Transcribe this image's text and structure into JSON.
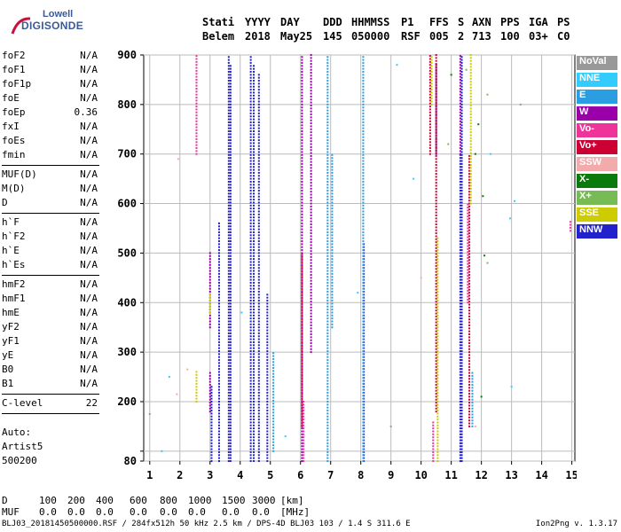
{
  "logo": {
    "top": "Lowell",
    "bottom": "DIGISONDE"
  },
  "header": {
    "columns": [
      {
        "label": "Stati",
        "value": "Belem"
      },
      {
        "label": "YYYY",
        "value": "2018"
      },
      {
        "label": "DAY",
        "value": "May25"
      },
      {
        "label": "DDD",
        "value": "145"
      },
      {
        "label": "HHMMSS",
        "value": "050000"
      },
      {
        "label": "P1",
        "value": "RSF"
      },
      {
        "label": "FFS",
        "value": "005"
      },
      {
        "label": "S",
        "value": "2"
      },
      {
        "label": "AXN",
        "value": "713"
      },
      {
        "label": "PPS",
        "value": "100"
      },
      {
        "label": "IGA",
        "value": "03+"
      },
      {
        "label": "PS",
        "value": "C0"
      }
    ]
  },
  "parameters": [
    {
      "group": [
        {
          "name": "foF2",
          "value": "N/A"
        },
        {
          "name": "foF1",
          "value": "N/A"
        },
        {
          "name": "foF1p",
          "value": "N/A"
        },
        {
          "name": "foE",
          "value": "N/A"
        },
        {
          "name": "foEp",
          "value": "0.36"
        },
        {
          "name": "fxI",
          "value": "N/A"
        },
        {
          "name": "foEs",
          "value": "N/A"
        },
        {
          "name": "fmin",
          "value": "N/A"
        }
      ]
    },
    {
      "group": [
        {
          "name": "MUF(D)",
          "value": "N/A"
        },
        {
          "name": "M(D)",
          "value": "N/A"
        },
        {
          "name": "D",
          "value": "N/A"
        }
      ]
    },
    {
      "group": [
        {
          "name": "h`F",
          "value": "N/A"
        },
        {
          "name": "h`F2",
          "value": "N/A"
        },
        {
          "name": "h`E",
          "value": "N/A"
        },
        {
          "name": "h`Es",
          "value": "N/A"
        }
      ]
    },
    {
      "group": [
        {
          "name": "hmF2",
          "value": "N/A"
        },
        {
          "name": "hmF1",
          "value": "N/A"
        },
        {
          "name": "hmE",
          "value": "N/A"
        },
        {
          "name": "yF2",
          "value": "N/A"
        },
        {
          "name": "yF1",
          "value": "N/A"
        },
        {
          "name": "yE",
          "value": "N/A"
        },
        {
          "name": "B0",
          "value": "N/A"
        },
        {
          "name": "B1",
          "value": "N/A"
        }
      ]
    },
    {
      "group": [
        {
          "name": "C-level",
          "value": "22"
        }
      ]
    }
  ],
  "auto": [
    "Auto:",
    "Artist5",
    "500200"
  ],
  "legend": [
    {
      "label": "NoVal",
      "color": "#999999"
    },
    {
      "label": "NNE",
      "color": "#33ccff"
    },
    {
      "label": "E",
      "color": "#2a9ee0"
    },
    {
      "label": "W",
      "color": "#9900aa"
    },
    {
      "label": "Vo-",
      "color": "#ee3399"
    },
    {
      "label": "Vo+",
      "color": "#cc0033"
    },
    {
      "label": "SSW",
      "color": "#f2aaaa"
    },
    {
      "label": "X-",
      "color": "#0a7a0a"
    },
    {
      "label": "X+",
      "color": "#77bb55"
    },
    {
      "label": "SSE",
      "color": "#cccc00"
    },
    {
      "label": "NNW",
      "color": "#2222cc"
    }
  ],
  "bottom_table": {
    "row1_label": "D",
    "row1": [
      "100",
      "200",
      "400",
      "600",
      "800",
      "1000",
      "1500",
      "3000",
      "[km]"
    ],
    "row2_label": "MUF",
    "row2": [
      "0.0",
      "0.0",
      "0.0",
      "0.0",
      "0.0",
      "0.0",
      "0.0",
      "0.0",
      "[MHz]"
    ]
  },
  "footer": {
    "left": "BLJ03_20181450500000.RSF / 284fx512h 50 kHz 2.5 km / DPS-4D BLJ03 103 / 1.4 S 311.6 E",
    "right": "Ion2Png v. 1.3.17"
  },
  "chart_data": {
    "type": "scatter",
    "title": "",
    "xlabel": "",
    "ylabel": "",
    "xlim": [
      0.8,
      15.1
    ],
    "ylim": [
      80,
      900
    ],
    "x_ticks": [
      1,
      2,
      3,
      4,
      5,
      6,
      7,
      8,
      9,
      10,
      11,
      12,
      13,
      14,
      15
    ],
    "y_ticks": [
      80,
      100,
      200,
      300,
      400,
      500,
      600,
      700,
      800,
      900
    ],
    "y_tick_labels": [
      "80",
      "",
      "200",
      "300",
      "400",
      "500",
      "600",
      "700",
      "800",
      "900"
    ],
    "grid": true,
    "legend_position": "right",
    "x_units": "MHz",
    "y_units": "km",
    "series": [
      {
        "name": "NNW",
        "color": "#2222cc",
        "style": "column",
        "points": [
          [
            3.62,
            80,
            900
          ],
          [
            3.68,
            80,
            880
          ],
          [
            4.35,
            80,
            900
          ],
          [
            4.45,
            80,
            880
          ],
          [
            4.62,
            80,
            860
          ],
          [
            4.9,
            80,
            420
          ],
          [
            3.05,
            80,
            230
          ],
          [
            8.1,
            80,
            520
          ],
          [
            11.35,
            80,
            900
          ],
          [
            11.3,
            80,
            700
          ],
          [
            3.3,
            80,
            560
          ]
        ]
      },
      {
        "name": "W",
        "color": "#9900aa",
        "style": "column",
        "points": [
          [
            6.05,
            80,
            900
          ],
          [
            6.35,
            300,
            900
          ],
          [
            11.3,
            700,
            900
          ],
          [
            10.5,
            700,
            880
          ],
          [
            3.0,
            350,
            500
          ],
          [
            3.0,
            180,
            260
          ]
        ]
      },
      {
        "name": "E",
        "color": "#2a9ee0",
        "style": "column",
        "points": [
          [
            6.9,
            80,
            900
          ],
          [
            8.08,
            80,
            900
          ],
          [
            7.05,
            350,
            700
          ],
          [
            5.1,
            100,
            300
          ],
          [
            11.7,
            150,
            260
          ]
        ]
      },
      {
        "name": "Vo+",
        "color": "#cc0033",
        "style": "column",
        "points": [
          [
            10.5,
            180,
            900
          ],
          [
            11.6,
            150,
            700
          ],
          [
            6.05,
            150,
            500
          ],
          [
            10.3,
            700,
            900
          ]
        ]
      },
      {
        "name": "SSE",
        "color": "#cccc00",
        "style": "column",
        "points": [
          [
            10.55,
            80,
            530
          ],
          [
            11.65,
            600,
            900
          ],
          [
            10.35,
            800,
            900
          ],
          [
            2.55,
            200,
            260
          ],
          [
            3.0,
            380,
            420
          ]
        ]
      },
      {
        "name": "Vo-",
        "color": "#ee3399",
        "style": "column",
        "points": [
          [
            2.55,
            700,
            900
          ],
          [
            6.1,
            80,
            200
          ],
          [
            11.55,
            400,
            600
          ],
          [
            10.4,
            80,
            160
          ],
          [
            14.95,
            545,
            565
          ]
        ]
      },
      {
        "name": "X-",
        "color": "#0a7a0a",
        "style": "scatter",
        "points": [
          [
            12.0,
            210
          ],
          [
            12.05,
            615
          ],
          [
            11.9,
            760
          ],
          [
            11.8,
            700
          ],
          [
            12.1,
            495
          ],
          [
            11.0,
            860
          ]
        ]
      },
      {
        "name": "SSW",
        "color": "#f2aaaa",
        "style": "scatter",
        "points": [
          [
            1.9,
            215
          ],
          [
            2.25,
            265
          ],
          [
            1.95,
            690
          ],
          [
            11.8,
            150
          ],
          [
            10.0,
            450
          ]
        ]
      },
      {
        "name": "X+",
        "color": "#77bb55",
        "style": "scatter",
        "points": [
          [
            11.5,
            870
          ],
          [
            12.2,
            820
          ],
          [
            10.9,
            720
          ],
          [
            12.2,
            480
          ]
        ]
      },
      {
        "name": "NNE",
        "color": "#33ccff",
        "style": "scatter",
        "points": [
          [
            1.4,
            100
          ],
          [
            1.65,
            250
          ],
          [
            9.2,
            880
          ],
          [
            5.5,
            130
          ],
          [
            13.0,
            230
          ],
          [
            12.3,
            700
          ],
          [
            9.75,
            650
          ],
          [
            12.95,
            570
          ],
          [
            7.9,
            420
          ],
          [
            4.05,
            380
          ],
          [
            13.1,
            605
          ]
        ]
      },
      {
        "name": "NoVal",
        "color": "#999999",
        "style": "scatter",
        "points": [
          [
            1.0,
            175
          ],
          [
            13.3,
            800
          ],
          [
            9.0,
            150
          ]
        ]
      }
    ]
  }
}
